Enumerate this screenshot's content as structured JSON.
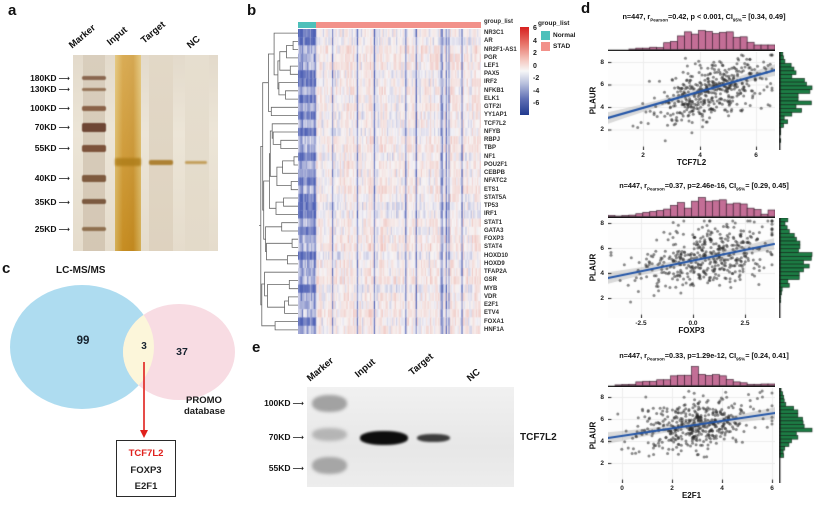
{
  "colors": {
    "teal": "#4ec0ba",
    "salmon": "#f2918a",
    "heatmap_positive": "#d7201f",
    "heatmap_negative": "#213a8f",
    "venn_left_fill": "#aedcf0",
    "venn_right_fill": "#f8dce3",
    "venn_overlap_fill": "#fcf6da",
    "hist_top_fill": "#c36e96",
    "hist_right_fill": "#1d7d45",
    "regression_line": "#2456a8",
    "highlight_red": "#e0201c"
  },
  "icons": {
    "arrow_right": "⟶",
    "down_arrow": "red-down-arrow-icon"
  },
  "panel_a": {
    "label": "a",
    "lane_labels": [
      "Marker",
      "Input",
      "Target",
      "NC"
    ],
    "mw_labels": [
      "180KD",
      "130KD",
      "100KD",
      "70KD",
      "55KD",
      "40KD",
      "35KD",
      "25KD"
    ]
  },
  "panel_b": {
    "label": "b",
    "annotation_label": "group_list",
    "genes": [
      "NR3C1",
      "AR",
      "NR2F1-AS1",
      "PGR",
      "LEF1",
      "PAX5",
      "IRF2",
      "NFKB1",
      "ELK1",
      "GTF2I",
      "YY1AP1",
      "TCF7L2",
      "NFYB",
      "RBPJ",
      "TBP",
      "NF1",
      "POU2F1",
      "CEBPB",
      "NFATC2",
      "ETS1",
      "STAT5A",
      "TP53",
      "IRF1",
      "STAT1",
      "GATA3",
      "FOXP3",
      "STAT4",
      "HOXD10",
      "HOXD9",
      "TFAP2A",
      "GSR",
      "MYB",
      "VDR",
      "E2F1",
      "ETV4",
      "FOXA1",
      "HNF1A"
    ],
    "colorbar_ticks": [
      "6",
      "4",
      "2",
      "0",
      "-2",
      "-4",
      "-6"
    ],
    "legend_title": "group_list",
    "legend_items": [
      {
        "label": "Normal"
      },
      {
        "label": "STAD"
      }
    ]
  },
  "panel_c": {
    "label": "c",
    "left_set_label": "LC-MS/MS",
    "left_count": "99",
    "overlap_count": "3",
    "right_count": "37",
    "right_set_label_line1": "PROMO",
    "right_set_label_line2": "database",
    "box_genes": [
      "TCF7L2",
      "FOXP3",
      "E2F1"
    ]
  },
  "panel_d": {
    "label": "d",
    "plots": [
      {
        "title_pre": "n=447, r",
        "title_sub1": "Pearson",
        "title_mid": "=0.42, p < 0.001, CI",
        "title_sub2": "95%",
        "title_post": "= [0.34, 0.49]",
        "xlabel": "TCF7L2",
        "ylabel": "PLAUR",
        "xticks": [
          "2",
          "4",
          "6"
        ],
        "yticks": [
          "8",
          "6",
          "4",
          "2"
        ]
      },
      {
        "title_pre": "n=447, r",
        "title_sub1": "Pearson",
        "title_mid": "=0.37, p=2.46e-16, CI",
        "title_sub2": "95%",
        "title_post": "= [0.29, 0.45]",
        "xlabel": "FOXP3",
        "ylabel": "PLAUR",
        "xticks": [
          "-2.5",
          "0.0",
          "2.5"
        ],
        "yticks": [
          "8",
          "6",
          "4",
          "2"
        ]
      },
      {
        "title_pre": "n=447, r",
        "title_sub1": "Pearson",
        "title_mid": "=0.33, p=1.29e-12, CI",
        "title_sub2": "95%",
        "title_post": "= [0.24, 0.41]",
        "xlabel": "E2F1",
        "ylabel": "PLAUR",
        "xticks": [
          "0",
          "2",
          "4",
          "6"
        ],
        "yticks": [
          "8",
          "6",
          "4",
          "2"
        ]
      }
    ]
  },
  "panel_e": {
    "label": "e",
    "lane_labels": [
      "Marker",
      "Input",
      "Target",
      "NC"
    ],
    "mw_labels": [
      "100KD",
      "70KD",
      "55KD"
    ],
    "blot_label": "TCF7L2"
  },
  "chart_data": [
    {
      "type": "heatmap",
      "rows": [
        "NR3C1",
        "AR",
        "NR2F1-AS1",
        "PGR",
        "LEF1",
        "PAX5",
        "IRF2",
        "NFKB1",
        "ELK1",
        "GTF2I",
        "YY1AP1",
        "TCF7L2",
        "NFYB",
        "RBPJ",
        "TBP",
        "NF1",
        "POU2F1",
        "CEBPB",
        "NFATC2",
        "ETS1",
        "STAT5A",
        "TP53",
        "IRF1",
        "STAT1",
        "GATA3",
        "FOXP3",
        "STAT4",
        "HOXD10",
        "HOXD9",
        "TFAP2A",
        "GSR",
        "MYB",
        "VDR",
        "E2F1",
        "ETV4",
        "FOXA1",
        "HNF1A"
      ],
      "column_groups": [
        "Normal",
        "STAD"
      ],
      "legend_title": "group_list",
      "colorbar_range": [
        -6,
        6
      ],
      "colorbar_ticks": [
        6,
        4,
        2,
        0,
        -2,
        -4,
        -6
      ],
      "row_dendrogram": true
    },
    {
      "type": "venn",
      "sets": [
        "LC-MS/MS",
        "PROMO database"
      ],
      "left_only": 99,
      "overlap": 3,
      "right_only": 37,
      "overlap_genes": [
        "TCF7L2",
        "FOXP3",
        "E2F1"
      ]
    },
    {
      "type": "scatter",
      "x_label": "TCF7L2",
      "y_label": "PLAUR",
      "n": 447,
      "r_pearson": 0.42,
      "p_value": "< 0.001",
      "ci95": [
        0.34,
        0.49
      ],
      "x_ticks": [
        2,
        4,
        6
      ],
      "y_ticks": [
        2,
        4,
        6,
        8
      ],
      "marginal_histograms": [
        "top",
        "right"
      ],
      "regression_line": true
    },
    {
      "type": "scatter",
      "x_label": "FOXP3",
      "y_label": "PLAUR",
      "n": 447,
      "r_pearson": 0.37,
      "p_value": "2.46e-16",
      "ci95": [
        0.29,
        0.45
      ],
      "x_ticks": [
        -2.5,
        0.0,
        2.5
      ],
      "y_ticks": [
        2,
        4,
        6,
        8
      ],
      "marginal_histograms": [
        "top",
        "right"
      ],
      "regression_line": true
    },
    {
      "type": "scatter",
      "x_label": "E2F1",
      "y_label": "PLAUR",
      "n": 447,
      "r_pearson": 0.33,
      "p_value": "1.29e-12",
      "ci95": [
        0.24,
        0.41
      ],
      "x_ticks": [
        0,
        2,
        4,
        6
      ],
      "y_ticks": [
        2,
        4,
        6,
        8
      ],
      "marginal_histograms": [
        "top",
        "right"
      ],
      "regression_line": true
    }
  ]
}
